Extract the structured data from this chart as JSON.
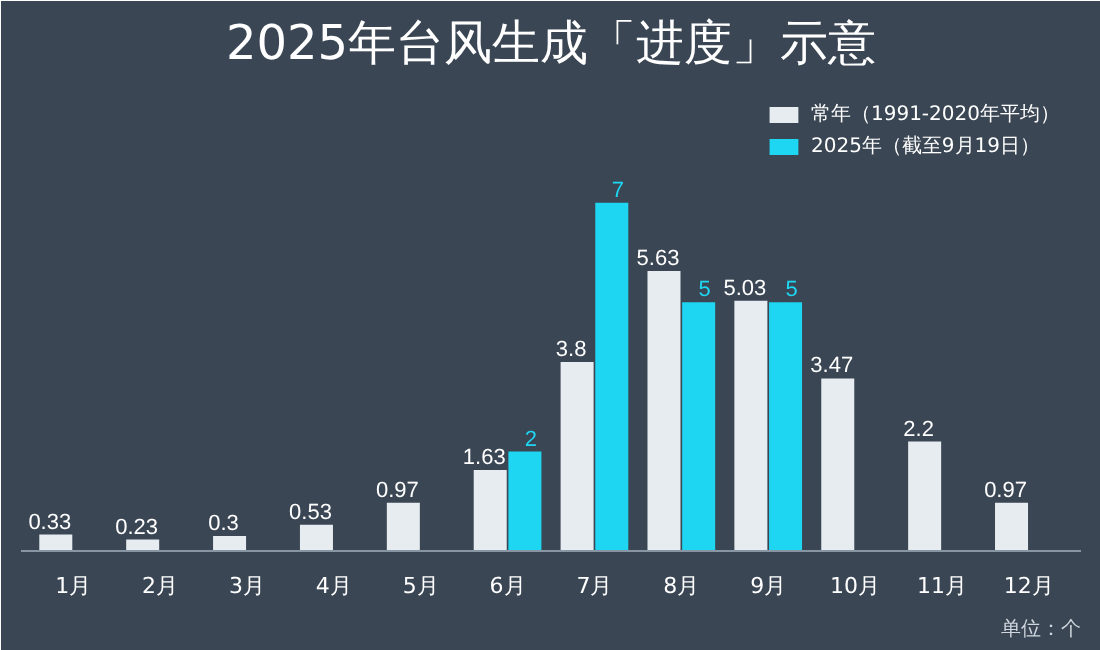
{
  "chart_data": {
    "type": "bar",
    "title": "2025年台风生成「进度」示意",
    "categories": [
      "1月",
      "2月",
      "3月",
      "4月",
      "5月",
      "6月",
      "7月",
      "8月",
      "9月",
      "10月",
      "11月",
      "12月"
    ],
    "series": [
      {
        "name": "常年（1991-2020年平均）",
        "color": "#e6ecf0",
        "values": [
          0.33,
          0.23,
          0.3,
          0.53,
          0.97,
          1.63,
          3.8,
          5.63,
          5.03,
          3.47,
          2.2,
          0.97
        ]
      },
      {
        "name": "2025年（截至9月19日）",
        "color": "#1fd6f2",
        "values": [
          null,
          null,
          null,
          null,
          null,
          2,
          7,
          5,
          5,
          null,
          null,
          null
        ]
      }
    ],
    "data_labels": true,
    "legend": "top right",
    "grid": false,
    "annotations": [
      "单位：个"
    ]
  }
}
